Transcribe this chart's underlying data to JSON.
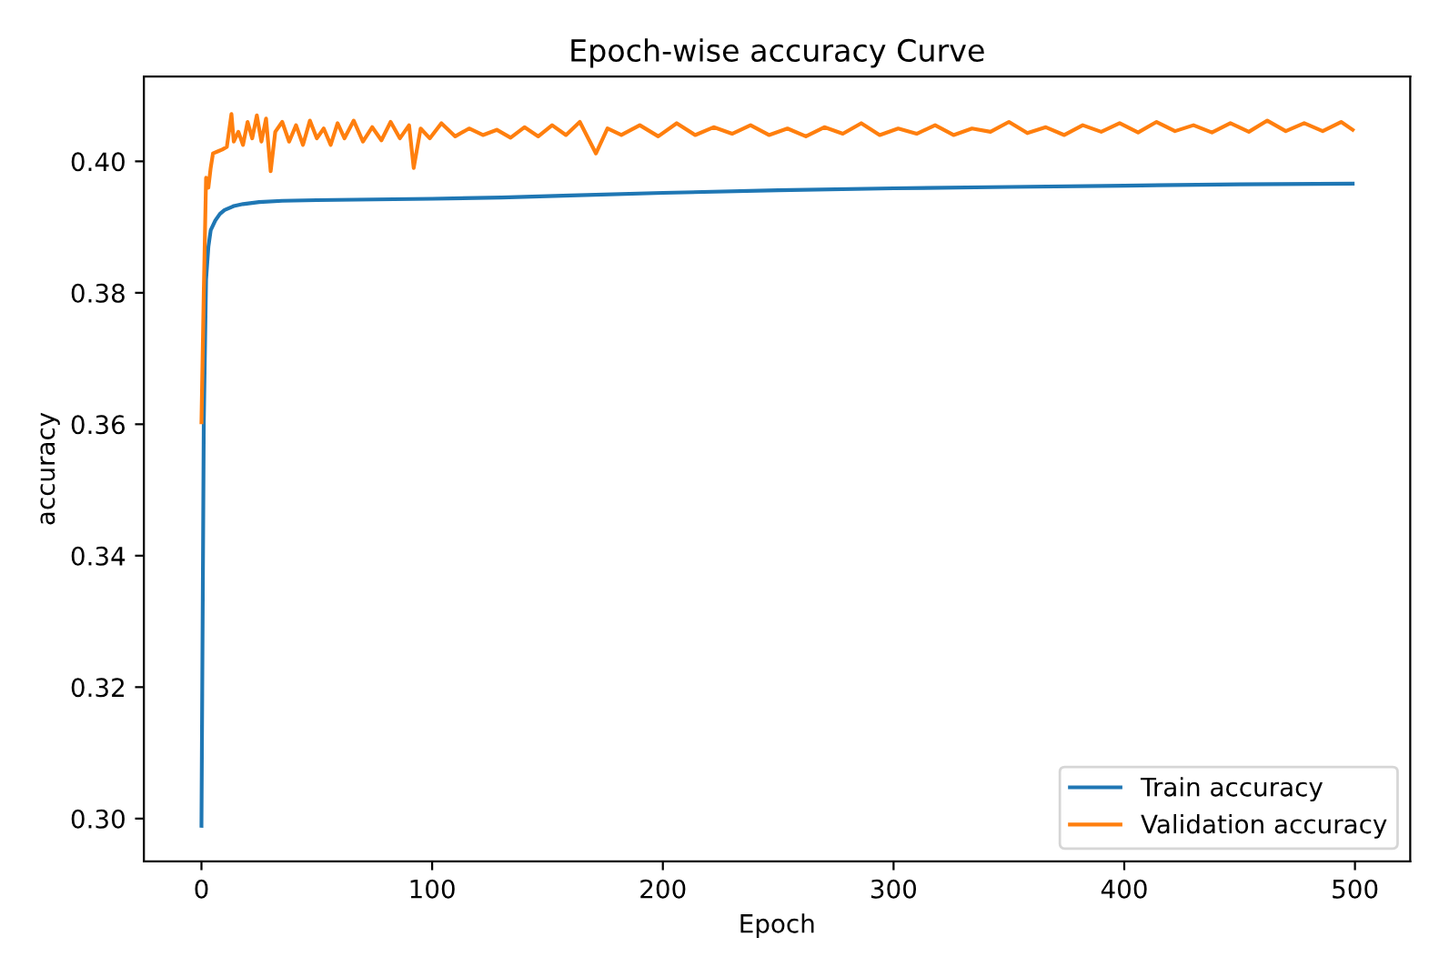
{
  "chart_data": {
    "type": "line",
    "title": "Epoch-wise accuracy Curve",
    "xlabel": "Epoch",
    "ylabel": "accuracy",
    "xlim": [
      -24.95,
      523.95
    ],
    "xticks": [
      0,
      100,
      200,
      300,
      400,
      500
    ],
    "ylim": [
      0.2935,
      0.4129
    ],
    "yticks": [
      {
        "value": 0.3,
        "label": "0.30"
      },
      {
        "value": 0.32,
        "label": "0.32"
      },
      {
        "value": 0.34,
        "label": "0.34"
      },
      {
        "value": 0.36,
        "label": "0.36"
      },
      {
        "value": 0.38,
        "label": "0.38"
      },
      {
        "value": 0.4,
        "label": "0.40"
      }
    ],
    "grid": false,
    "legend": "bottom right",
    "marker": "none",
    "line_style": "solid",
    "series": [
      {
        "name": "Train accuracy",
        "color": "#1f77b4",
        "x": [
          0,
          1,
          2,
          3,
          4,
          6,
          8,
          10,
          14,
          18,
          25,
          35,
          50,
          75,
          100,
          130,
          160,
          200,
          250,
          300,
          350,
          400,
          450,
          499
        ],
        "values": [
          0.2989,
          0.36,
          0.382,
          0.387,
          0.3895,
          0.391,
          0.392,
          0.3926,
          0.3932,
          0.3935,
          0.3938,
          0.394,
          0.3941,
          0.3942,
          0.3943,
          0.3945,
          0.3948,
          0.3952,
          0.3956,
          0.3959,
          0.3961,
          0.3963,
          0.3965,
          0.3966
        ]
      },
      {
        "name": "Validation accuracy",
        "color": "#ff7f0e",
        "x": [
          0,
          1,
          2,
          3,
          4,
          5,
          7,
          9,
          11,
          13,
          14,
          16,
          18,
          20,
          22,
          24,
          26,
          28,
          30,
          32,
          35,
          38,
          41,
          44,
          47,
          50,
          53,
          56,
          59,
          62,
          66,
          70,
          74,
          78,
          82,
          86,
          90,
          92,
          95,
          99,
          104,
          110,
          116,
          122,
          128,
          134,
          140,
          146,
          152,
          158,
          164,
          171,
          176,
          182,
          190,
          198,
          206,
          214,
          222,
          230,
          238,
          246,
          254,
          262,
          270,
          278,
          286,
          294,
          302,
          310,
          318,
          326,
          334,
          342,
          350,
          358,
          366,
          374,
          382,
          390,
          398,
          406,
          414,
          422,
          430,
          438,
          446,
          454,
          462,
          470,
          478,
          486,
          494,
          499
        ],
        "values": [
          0.3603,
          0.38,
          0.3975,
          0.396,
          0.399,
          0.4012,
          0.4015,
          0.4018,
          0.4022,
          0.4072,
          0.403,
          0.4045,
          0.4025,
          0.406,
          0.4035,
          0.407,
          0.403,
          0.4065,
          0.3985,
          0.4045,
          0.406,
          0.403,
          0.4055,
          0.4025,
          0.4062,
          0.4035,
          0.405,
          0.4025,
          0.4058,
          0.4035,
          0.4062,
          0.403,
          0.4052,
          0.4032,
          0.406,
          0.4035,
          0.4055,
          0.399,
          0.405,
          0.4035,
          0.4058,
          0.4038,
          0.405,
          0.404,
          0.4048,
          0.4036,
          0.4052,
          0.4038,
          0.4055,
          0.404,
          0.406,
          0.4012,
          0.405,
          0.404,
          0.4055,
          0.4038,
          0.4058,
          0.404,
          0.4052,
          0.4042,
          0.4055,
          0.404,
          0.405,
          0.4038,
          0.4052,
          0.4042,
          0.4058,
          0.404,
          0.405,
          0.4042,
          0.4055,
          0.404,
          0.405,
          0.4045,
          0.406,
          0.4043,
          0.4052,
          0.404,
          0.4055,
          0.4045,
          0.4058,
          0.4044,
          0.406,
          0.4046,
          0.4055,
          0.4044,
          0.4058,
          0.4045,
          0.4062,
          0.4046,
          0.4058,
          0.4046,
          0.406,
          0.4048
        ]
      }
    ]
  }
}
